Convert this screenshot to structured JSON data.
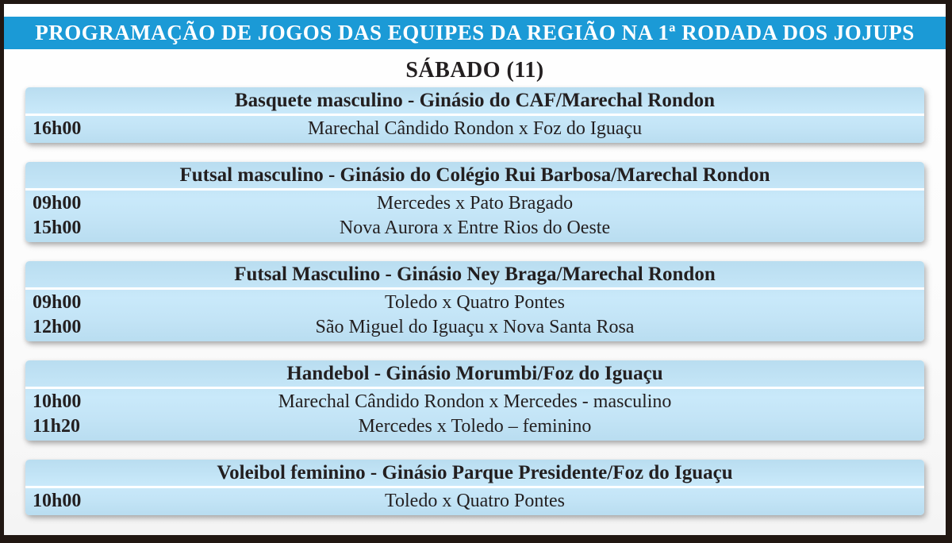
{
  "banner": {
    "title": "PROGRAMAÇÃO DE JOGOS DAS EQUIPES DA REGIÃO NA 1ª RODADA DOS JOJUPS"
  },
  "day_title": "SÁBADO (11)",
  "sections": [
    {
      "title": "Basquete masculino - Ginásio do CAF/Marechal Rondon",
      "games": [
        {
          "time": "16h00",
          "match": "Marechal Cândido Rondon x Foz do Iguaçu"
        }
      ]
    },
    {
      "title": "Futsal masculino - Ginásio do Colégio Rui Barbosa/Marechal Rondon",
      "games": [
        {
          "time": "09h00",
          "match": "Mercedes x Pato Bragado"
        },
        {
          "time": "15h00",
          "match": "Nova Aurora x Entre Rios do Oeste"
        }
      ]
    },
    {
      "title": "Futsal Masculino - Ginásio Ney Braga/Marechal Rondon",
      "games": [
        {
          "time": "09h00",
          "match": "Toledo x Quatro Pontes"
        },
        {
          "time": "12h00",
          "match": "São Miguel do Iguaçu x Nova Santa Rosa"
        }
      ]
    },
    {
      "title": "Handebol - Ginásio Morumbi/Foz do Iguaçu",
      "games": [
        {
          "time": "10h00",
          "match": "Marechal Cândido Rondon x Mercedes - masculino"
        },
        {
          "time": "11h20",
          "match": "Mercedes x Toledo – feminino"
        }
      ]
    },
    {
      "title": "Voleibol feminino - Ginásio Parque Presidente/Foz do Iguaçu",
      "games": [
        {
          "time": "10h00",
          "match": "Toledo x Quatro Pontes"
        }
      ]
    }
  ],
  "colors": {
    "banner_blue": "#1b9ad6",
    "panel_blue_top": "#b9ddf0",
    "panel_blue_mid": "#c9e9fa",
    "text_dark": "#231f20",
    "border_black": "#211712"
  }
}
